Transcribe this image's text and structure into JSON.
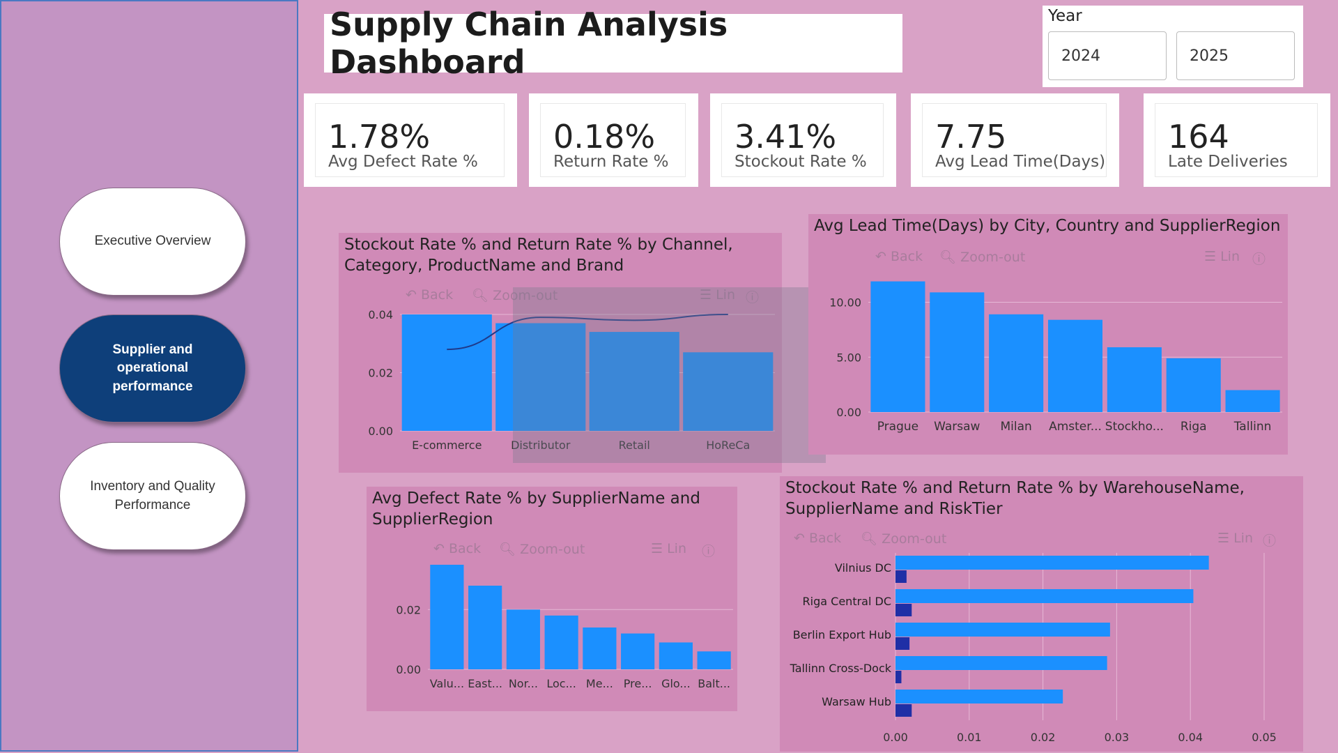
{
  "nav": {
    "items": [
      {
        "label": "Executive Overview",
        "active": false
      },
      {
        "label": "Supplier and operational performance",
        "active": true
      },
      {
        "label": "Inventory and Quality Performance",
        "active": false
      }
    ]
  },
  "header": {
    "title": "Supply Chain Analysis Dashboard"
  },
  "year_slicer": {
    "label": "Year",
    "options": [
      "2024",
      "2025"
    ]
  },
  "kpis": [
    {
      "value": "1.78%",
      "label": "Avg Defect Rate %"
    },
    {
      "value": "0.18%",
      "label": "Return Rate %"
    },
    {
      "value": "3.41%",
      "label": "Stockout Rate %"
    },
    {
      "value": "7.75",
      "label": "Avg Lead Time(Days)"
    },
    {
      "value": "164",
      "label": "Late Deliveries"
    }
  ],
  "toolbar": {
    "back": "Back",
    "zoom_out": "Zoom-out",
    "lin": "Lin",
    "help": "?"
  },
  "colors": {
    "bar": "#1b90ff",
    "bar_dark": "#1f2fa6",
    "line": "#1f3a8a",
    "panel": "#d08ab7",
    "background": "#d9a2c6",
    "nav_active": "#0e3f7a"
  },
  "chart_data": [
    {
      "id": "stockout-return-by-channel",
      "type": "bar",
      "title": "Stockout Rate % and Return Rate % by Channel, Category, ProductName and Brand",
      "categories": [
        "E-commerce",
        "Distributor",
        "Retail",
        "HoReCa"
      ],
      "series": [
        {
          "type": "bar",
          "values": [
            0.04,
            0.037,
            0.034,
            0.027
          ]
        },
        {
          "type": "line",
          "values": [
            0.028,
            0.039,
            0.038,
            0.04
          ]
        }
      ],
      "yticks": [
        "0.00",
        "0.02",
        "0.04"
      ],
      "ylim": [
        0,
        0.04
      ]
    },
    {
      "id": "lead-time-by-city",
      "type": "bar",
      "title": "Avg Lead Time(Days) by City, Country and SupplierRegion",
      "categories": [
        "Prague",
        "Warsaw",
        "Milan",
        "Amster...",
        "Stockho...",
        "Riga",
        "Tallinn"
      ],
      "values": [
        11.9,
        10.9,
        8.9,
        8.4,
        5.9,
        4.9,
        2.0
      ],
      "yticks": [
        "0.00",
        "5.00",
        "10.00"
      ],
      "ylim": [
        0,
        12
      ]
    },
    {
      "id": "defect-by-supplier",
      "type": "bar",
      "title": "Avg Defect Rate % by SupplierName and SupplierRegion",
      "categories": [
        "Valu...",
        "East...",
        "Nor...",
        "Loc...",
        "Me...",
        "Pre...",
        "Glo...",
        "Balt..."
      ],
      "values": [
        0.035,
        0.028,
        0.02,
        0.018,
        0.014,
        0.012,
        0.009,
        0.006
      ],
      "yticks": [
        "0.00",
        "0.02"
      ],
      "ylim": [
        0,
        0.035
      ]
    },
    {
      "id": "stockout-return-by-warehouse",
      "type": "bar",
      "title": "Stockout Rate % and Return Rate % by WarehouseName, SupplierName and RiskTier",
      "categories": [
        "Vilnius DC",
        "Riga Central DC",
        "Berlin Export Hub",
        "Tallinn Cross-Dock",
        "Warsaw Hub"
      ],
      "series": [
        {
          "values": [
            0.0425,
            0.0404,
            0.0291,
            0.0287,
            0.0227
          ]
        },
        {
          "values": [
            0.0015,
            0.0022,
            0.0019,
            0.0008,
            0.0022
          ]
        }
      ],
      "xticks": [
        "0.00",
        "0.01",
        "0.02",
        "0.03",
        "0.04",
        "0.05"
      ],
      "xlim": [
        0,
        0.05
      ]
    }
  ]
}
